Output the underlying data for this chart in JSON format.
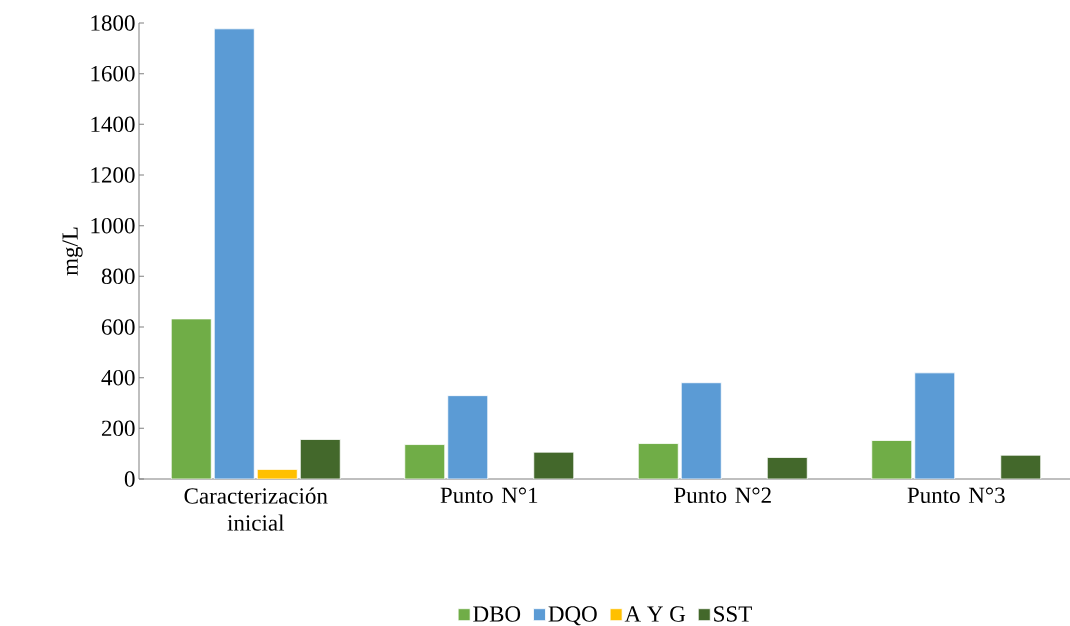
{
  "chart_data": {
    "type": "bar",
    "ylabel": "mg/L",
    "categories": [
      "Caracterización inicial",
      "Punto N°1",
      "Punto N°2",
      "Punto N°3"
    ],
    "series": [
      {
        "name": "DBO",
        "color": "#70ad47",
        "values": [
          632,
          136,
          140,
          152
        ]
      },
      {
        "name": "DQO",
        "color": "#5b9bd5",
        "values": [
          1777,
          329,
          380,
          419
        ]
      },
      {
        "name": "A Y G",
        "color": "#ffc000",
        "values": [
          38,
          null,
          null,
          null
        ]
      },
      {
        "name": "SST",
        "color": "#43682b",
        "values": [
          156,
          106,
          85,
          94
        ]
      }
    ],
    "ylim": [
      0,
      1800
    ],
    "yticks": [
      0,
      200,
      400,
      600,
      800,
      1000,
      1200,
      1400,
      1600,
      1800
    ],
    "grid": false,
    "legend": "bottom"
  }
}
